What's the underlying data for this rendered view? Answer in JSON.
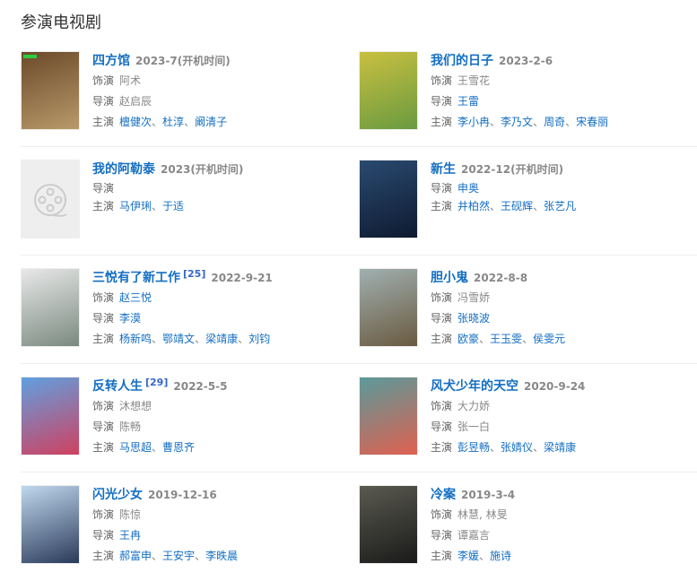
{
  "heading": "参演电视剧",
  "labels": {
    "role": "饰演",
    "director": "导演",
    "cast": "主演"
  },
  "items": [
    {
      "title": "四方馆",
      "date": "2023-7(开机时间)",
      "role": [
        {
          "t": "阿术",
          "link": false
        }
      ],
      "director": [
        {
          "t": "赵启辰",
          "link": false
        }
      ],
      "cast": [
        "檀健次",
        "杜淳",
        "阚清子"
      ],
      "poster": [
        "#6b4a2a",
        "#b89a6a"
      ],
      "poster_badge": "#2ecc40"
    },
    {
      "title": "我们的日子",
      "date": "2023-2-6",
      "role": [
        {
          "t": "王雪花",
          "link": false
        }
      ],
      "director": [
        {
          "t": "王雷",
          "link": true
        }
      ],
      "cast": [
        "李小冉",
        "李乃文",
        "周奇",
        "宋春丽"
      ],
      "poster": [
        "#c8c040",
        "#6a9a40"
      ]
    },
    {
      "title": "我的阿勒泰",
      "date": "2023(开机时间)",
      "role": null,
      "director": [],
      "cast": [
        "马伊琍",
        "于适"
      ],
      "poster": null
    },
    {
      "title": "新生",
      "date": "2022-12(开机时间)",
      "role": null,
      "director": [
        {
          "t": "申奥",
          "link": true
        }
      ],
      "cast": [
        "井柏然",
        "王砚辉",
        "张艺凡"
      ],
      "poster": [
        "#2a4a70",
        "#0e1a30"
      ]
    },
    {
      "title": "三悦有了新工作",
      "ref": "[25]",
      "date": "2022-9-21",
      "role": [
        {
          "t": "赵三悦",
          "link": true
        }
      ],
      "director": [
        {
          "t": "李漠",
          "link": true
        }
      ],
      "cast": [
        "杨新鸣",
        "鄂靖文",
        "梁靖康",
        "刘钧"
      ],
      "poster": [
        "#e8e8e8",
        "#7a8a80"
      ]
    },
    {
      "title": "胆小鬼",
      "date": "2022-8-8",
      "role": [
        {
          "t": "冯雪娇",
          "link": false
        }
      ],
      "director": [
        {
          "t": "张晓波",
          "link": true
        }
      ],
      "cast": [
        "欧豪",
        "王玉雯",
        "侯雯元"
      ],
      "poster": [
        "#a0b0b0",
        "#6a5a40"
      ]
    },
    {
      "title": "反转人生",
      "ref": "[29]",
      "date": "2022-5-5",
      "role": [
        {
          "t": "沐想想",
          "link": false
        }
      ],
      "director": [
        {
          "t": "陈畅",
          "link": false
        }
      ],
      "cast": [
        "马思超",
        "曹恩齐"
      ],
      "poster": [
        "#60a0e0",
        "#d04060"
      ]
    },
    {
      "title": "风犬少年的天空",
      "date": "2020-9-24",
      "role": [
        {
          "t": "大力娇",
          "link": false
        }
      ],
      "director": [
        {
          "t": "张一白",
          "link": false
        }
      ],
      "cast": [
        "彭昱畅",
        "张婧仪",
        "梁靖康"
      ],
      "poster": [
        "#5a9a9a",
        "#e06050"
      ]
    },
    {
      "title": "闪光少女",
      "date": "2019-12-16",
      "role": [
        {
          "t": "陈惊",
          "link": false
        }
      ],
      "director": [
        {
          "t": "王冉",
          "link": true
        }
      ],
      "cast": [
        "郝富申",
        "王安宇",
        "李昳晨"
      ],
      "poster": [
        "#c0d8ee",
        "#2a3a5a"
      ]
    },
    {
      "title": "冷案",
      "date": "2019-3-4",
      "role": [
        {
          "t": "林慧, 林旻",
          "link": false
        }
      ],
      "director": [
        {
          "t": "谭嘉言",
          "link": false
        }
      ],
      "cast": [
        "李媛",
        "施诗"
      ],
      "poster": [
        "#5a5a50",
        "#1a1a1a"
      ]
    }
  ]
}
